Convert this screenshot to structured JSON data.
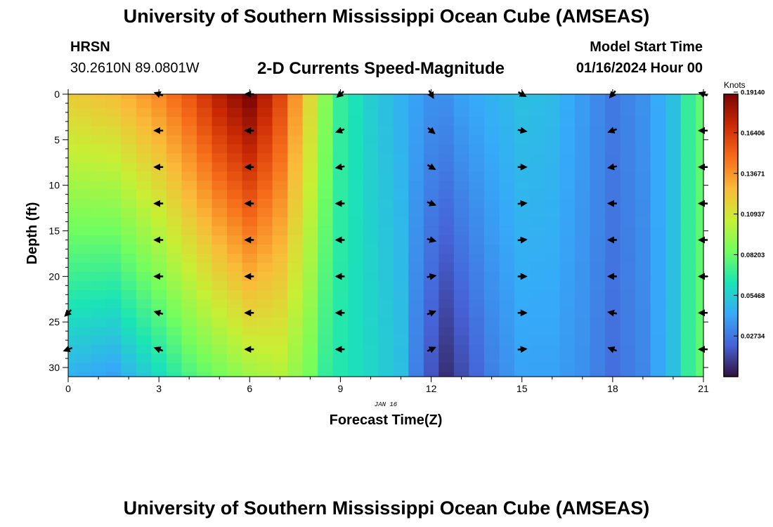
{
  "header": {
    "title": "University of Southern Mississippi Ocean Cube (AMSEAS)",
    "station": "HRSN",
    "coords": "30.2610N  89.0801W",
    "plot_title": "2-D Currents Speed-Magnitude",
    "model_label": "Model Start Time",
    "model_time": "01/16/2024 Hour 00"
  },
  "footer": {
    "title": "University of Southern Mississippi Ocean Cube (AMSEAS)"
  },
  "chart_data": {
    "type": "heatmap",
    "title": "2-D Currents Speed-Magnitude",
    "xlabel": "Forecast Time(Z)",
    "ylabel": "Depth (ft)",
    "date_label": "JAN 16",
    "xlim": [
      0,
      21
    ],
    "ylim": [
      31,
      0
    ],
    "x_ticks": [
      0,
      3,
      6,
      9,
      12,
      15,
      18,
      21
    ],
    "y_ticks": [
      0,
      5,
      10,
      15,
      20,
      25,
      30
    ],
    "colorbar": {
      "label": "Knots",
      "range": [
        0.0,
        0.19
      ],
      "ticks": [
        "0.19140",
        "0.16406",
        "0.13671",
        "0.10937",
        "0.08203",
        "0.05468",
        "0.02734"
      ],
      "tick_values": [
        0.1914,
        0.16406,
        0.13671,
        0.10937,
        0.08203,
        0.05468,
        0.02734
      ],
      "colors": [
        "#30123b",
        "#4662d7",
        "#36aaf9",
        "#1ae4b6",
        "#72fe5e",
        "#c8ef34",
        "#faba39",
        "#f66b19",
        "#cb2a04",
        "#7a0403"
      ]
    },
    "times": [
      0,
      0.5,
      1,
      1.5,
      2,
      2.5,
      3,
      3.5,
      4,
      4.5,
      5,
      5.5,
      6,
      6.5,
      7,
      7.5,
      8,
      8.5,
      9,
      9.5,
      10,
      10.5,
      11,
      11.5,
      12,
      12.5,
      13,
      13.5,
      14,
      14.5,
      15,
      15.5,
      16,
      16.5,
      17,
      17.5,
      18,
      18.5,
      19,
      19.5,
      20,
      20.5,
      21
    ],
    "depths": [
      0,
      1,
      2,
      3,
      4,
      5,
      6,
      7,
      8,
      9,
      10,
      11,
      12,
      13,
      14,
      15,
      16,
      17,
      18,
      19,
      20,
      21,
      22,
      23,
      24,
      25,
      26,
      27,
      28,
      29,
      30,
      31
    ],
    "profile": [
      {
        "t": 0,
        "top": 0.12,
        "bottom": 0.045
      },
      {
        "t": 1.5,
        "top": 0.125,
        "bottom": 0.04
      },
      {
        "t": 3,
        "top": 0.14,
        "bottom": 0.06
      },
      {
        "t": 4,
        "top": 0.155,
        "bottom": 0.075
      },
      {
        "t": 5,
        "top": 0.175,
        "bottom": 0.085
      },
      {
        "t": 6,
        "top": 0.19,
        "bottom": 0.095
      },
      {
        "t": 7,
        "top": 0.16,
        "bottom": 0.1
      },
      {
        "t": 8,
        "top": 0.115,
        "bottom": 0.085
      },
      {
        "t": 8.5,
        "top": 0.09,
        "bottom": 0.07
      },
      {
        "t": 9,
        "top": 0.07,
        "bottom": 0.065
      },
      {
        "t": 10,
        "top": 0.055,
        "bottom": 0.058
      },
      {
        "t": 11,
        "top": 0.045,
        "bottom": 0.05
      },
      {
        "t": 11.5,
        "top": 0.04,
        "bottom": 0.03
      },
      {
        "t": 12,
        "top": 0.035,
        "bottom": 0.018
      },
      {
        "t": 12.5,
        "top": 0.035,
        "bottom": 0.008
      },
      {
        "t": 13,
        "top": 0.04,
        "bottom": 0.015
      },
      {
        "t": 14,
        "top": 0.045,
        "bottom": 0.03
      },
      {
        "t": 15,
        "top": 0.05,
        "bottom": 0.04
      },
      {
        "t": 16,
        "top": 0.048,
        "bottom": 0.04
      },
      {
        "t": 17,
        "top": 0.038,
        "bottom": 0.035
      },
      {
        "t": 18,
        "top": 0.028,
        "bottom": 0.025
      },
      {
        "t": 19,
        "top": 0.035,
        "bottom": 0.032
      },
      {
        "t": 20,
        "top": 0.05,
        "bottom": 0.05
      },
      {
        "t": 20.5,
        "top": 0.07,
        "bottom": 0.07
      },
      {
        "t": 21,
        "top": 0.08,
        "bottom": 0.08
      }
    ],
    "vectors": [
      {
        "t": 0,
        "depths": [
          24,
          28
        ],
        "angles": [
          225,
          200
        ]
      },
      {
        "t": 3,
        "depths": [
          0,
          4,
          8,
          12,
          16,
          20,
          24,
          28
        ],
        "angles": [
          160,
          180,
          180,
          180,
          180,
          180,
          165,
          160
        ]
      },
      {
        "t": 6,
        "depths": [
          0,
          4,
          8,
          12,
          16,
          20,
          24,
          28
        ],
        "angles": [
          180,
          180,
          180,
          180,
          180,
          180,
          180,
          180
        ]
      },
      {
        "t": 9,
        "depths": [
          0,
          4,
          8,
          12,
          16,
          20,
          24,
          28
        ],
        "angles": [
          220,
          200,
          190,
          180,
          180,
          180,
          180,
          180
        ]
      },
      {
        "t": 12,
        "depths": [
          0,
          4,
          8,
          12,
          16,
          20,
          24,
          28
        ],
        "angles": [
          300,
          320,
          330,
          340,
          345,
          10,
          20,
          25
        ]
      },
      {
        "t": 15,
        "depths": [
          0,
          4,
          8,
          12,
          16,
          20,
          24,
          28
        ],
        "angles": [
          330,
          350,
          0,
          5,
          5,
          0,
          0,
          5
        ]
      },
      {
        "t": 18,
        "depths": [
          0,
          4,
          8,
          12,
          16,
          20,
          24,
          28
        ],
        "angles": [
          230,
          200,
          190,
          180,
          180,
          180,
          170,
          160
        ]
      },
      {
        "t": 21,
        "depths": [
          0,
          4,
          8,
          12,
          16,
          20,
          24,
          28
        ],
        "angles": [
          160,
          180,
          180,
          180,
          180,
          180,
          180,
          180
        ]
      }
    ]
  }
}
